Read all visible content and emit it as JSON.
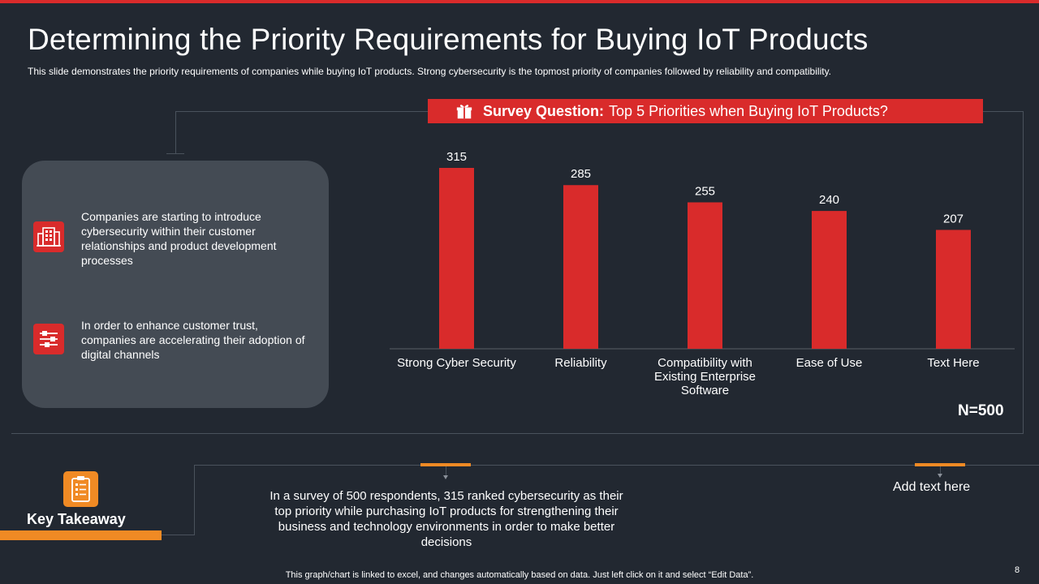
{
  "slide": {
    "title": "Determining the Priority Requirements for Buying IoT Products",
    "subtitle": "This slide demonstrates the priority requirements  of companies while buying IoT  products. Strong cybersecurity is the topmost priority of companies followed  by reliability and compatibility.",
    "page_number": "8",
    "footer": "This graph/chart is linked to excel,  and changes automatically based on data. Just left click on it and select “Edit Data”."
  },
  "survey": {
    "label": "Survey Question:",
    "question": "Top 5 Priorities when Buying IoT Products?"
  },
  "bullets": [
    {
      "icon": "city-building-icon",
      "text": "Companies are starting to introduce cybersecurity within their customer relationships and product development processes"
    },
    {
      "icon": "sliders-icon",
      "text": "In order to enhance customer trust, companies are accelerating their adoption of digital channels"
    }
  ],
  "sample_size": "N=500",
  "key_takeaway": {
    "label": "Key Takeaway",
    "icon": "clipboard-checklist-icon",
    "text": "In a survey  of 500 respondents,  315 ranked cybersecurity as their top priority while purchasing IoT products for strengthening  their business and technology environments  in order to make better decisions",
    "extra": "Add text here"
  },
  "colors": {
    "background": "#222831",
    "accent": "#d92b2b",
    "card": "#444b54",
    "orange": "#f08a24"
  },
  "chart_data": {
    "type": "bar",
    "title": "Top 5 Priorities when Buying IoT Products?",
    "categories": [
      "Strong Cyber Security",
      "Reliability",
      "Compatibility with Existing Enterprise Software",
      "Ease of Use",
      "Text Here"
    ],
    "category_lines": [
      [
        "Strong Cyber Security"
      ],
      [
        "Reliability"
      ],
      [
        "Compatibility with",
        "Existing Enterprise",
        "Software"
      ],
      [
        "Ease of Use"
      ],
      [
        "Text Here"
      ]
    ],
    "values": [
      315,
      285,
      255,
      240,
      207
    ],
    "ylim": [
      0,
      315
    ],
    "grid": false,
    "data_labels": true,
    "bar_color": "#d92b2b"
  }
}
